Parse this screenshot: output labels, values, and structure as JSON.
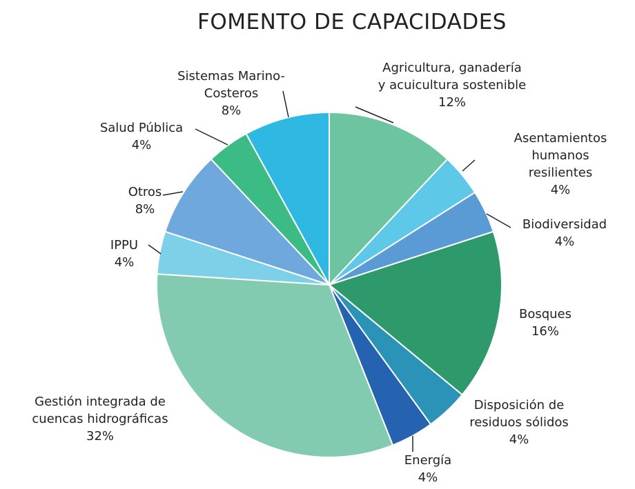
{
  "chart_data": {
    "type": "pie",
    "title": "FOMENTO DE CAPACIDADES",
    "categories": [
      "Agricultura, ganadería\ny acuicultura sostenible",
      "Asentamientos\nhumanos resilientes",
      "Biodiversidad",
      "Bosques",
      "Disposición de\nresiduos sólidos",
      "Energía",
      "Gestión integrada de\ncuencas hidrográficas",
      "IPPU",
      "Otros",
      "Salud Pública",
      "Sistemas Marino-\nCosteros"
    ],
    "values": [
      12,
      4,
      4,
      16,
      4,
      4,
      32,
      4,
      8,
      4,
      8
    ],
    "value_labels": [
      "12%",
      "4%",
      "4%",
      "16%",
      "4%",
      "4%",
      "32%",
      "4%",
      "8%",
      "4%",
      "8%"
    ],
    "colors": [
      "#6cc5a0",
      "#5ec8e8",
      "#5b9bd5",
      "#2e9a6c",
      "#2b93b8",
      "#2563b0",
      "#82cbb0",
      "#7dd0e8",
      "#6fa8dc",
      "#3dbb84",
      "#2eb8e2"
    ]
  }
}
